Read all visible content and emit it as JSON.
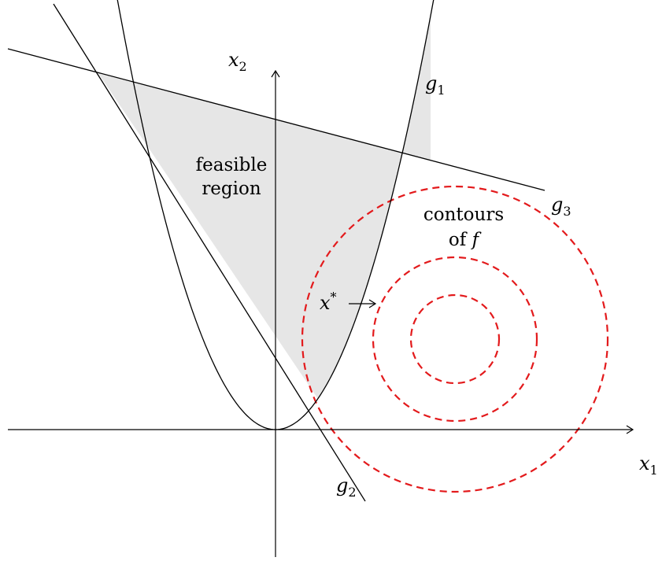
{
  "axes": {
    "x_label": {
      "main": "x",
      "sub": "1"
    },
    "y_label": {
      "main": "x",
      "sub": "2"
    }
  },
  "constraints": [
    {
      "name": "g",
      "sub": "1"
    },
    {
      "name": "g",
      "sub": "2"
    },
    {
      "name": "g",
      "sub": "3"
    }
  ],
  "region_label": {
    "line1": "feasible",
    "line2": "region"
  },
  "contour_label": {
    "line1": "contours",
    "line2_prefix": "of ",
    "line2_var": "f"
  },
  "optimum_label": {
    "main": "x",
    "sup": "*"
  },
  "colors": {
    "feasible_fill": "#e6e6e6",
    "contour": "#e31a1c",
    "curve": "#000000"
  }
}
